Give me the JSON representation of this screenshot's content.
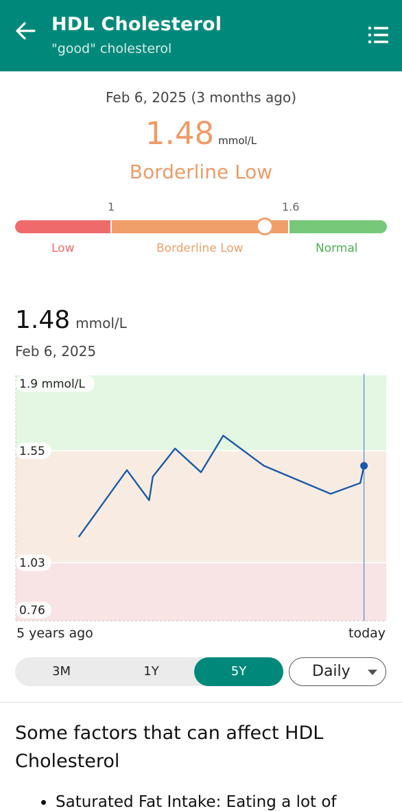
{
  "header": {
    "title": "HDL Cholesterol",
    "subtitle": "\"good\" cholesterol",
    "back_icon": "arrow-left-icon",
    "menu_icon": "list-icon",
    "background_color": "#00897b"
  },
  "summary": {
    "date": "Feb 6, 2025 (3 months ago)",
    "value": "1.48",
    "unit": "mmol/L",
    "status": "Borderline Low",
    "status_color": "#ef9b68"
  },
  "range": {
    "ticks": [
      "1",
      "1.6"
    ],
    "labels": [
      {
        "text": "Low",
        "color": "#ef6b6b"
      },
      {
        "text": "Borderline Low",
        "color": "#f09f6b"
      },
      {
        "text": "Normal",
        "color": "#4caf50"
      }
    ],
    "min": 0.4,
    "max": 2.0,
    "current": 1.48
  },
  "selected": {
    "value": "1.48",
    "unit": "mmol/L",
    "date": "Feb 6, 2025"
  },
  "chart_data": {
    "type": "line",
    "ylim": [
      0.76,
      1.9
    ],
    "y_tick_labels": [
      "1.9 mmol/L",
      "1.55",
      "1.03",
      "0.76"
    ],
    "x_tick_labels": [
      "5 years ago",
      "today"
    ],
    "bands": [
      {
        "from": 1.55,
        "to": 1.9,
        "color": "#e3f7e3"
      },
      {
        "from": 1.03,
        "to": 1.55,
        "color": "#f8ece2"
      },
      {
        "from": 0.76,
        "to": 1.03,
        "color": "#f8e4e4"
      }
    ],
    "line_color": "#1a5aa8",
    "series": [
      {
        "x": [
          0.17,
          0.3,
          0.36,
          0.37,
          0.43,
          0.5,
          0.56,
          0.67,
          0.85,
          0.93,
          0.94
        ],
        "values": [
          1.15,
          1.46,
          1.32,
          1.43,
          1.56,
          1.45,
          1.62,
          1.48,
          1.35,
          1.4,
          1.48
        ]
      }
    ],
    "highlight_index": 10
  },
  "controls": {
    "ranges": [
      "3M",
      "1Y",
      "5Y"
    ],
    "active_range": "5Y",
    "frequency": "Daily"
  },
  "factors": {
    "title": "Some factors that can affect HDL Cholesterol",
    "first_item": "Saturated Fat Intake: Eating a lot of"
  }
}
